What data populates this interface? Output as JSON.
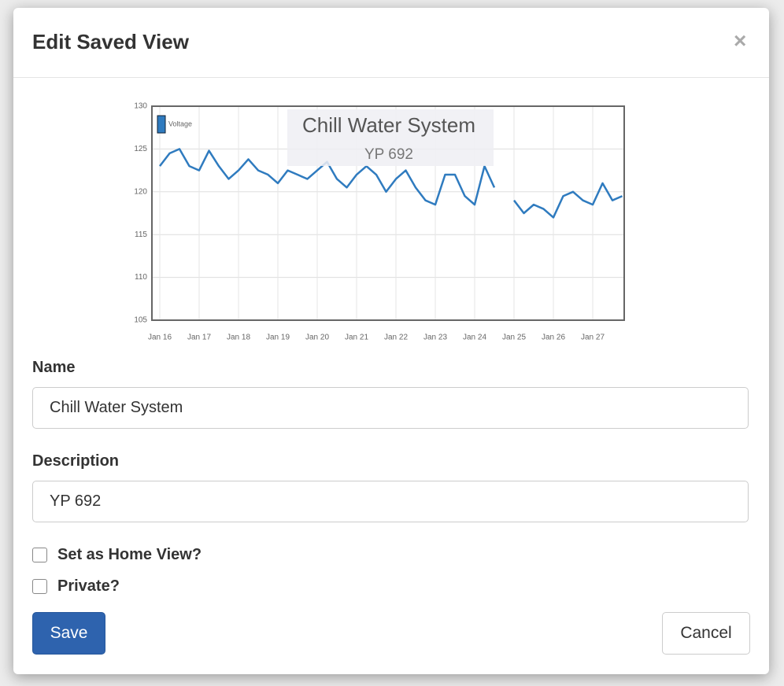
{
  "modal": {
    "title": "Edit Saved View",
    "close": "×",
    "name_label": "Name",
    "name_value": "Chill Water System",
    "description_label": "Description",
    "description_value": "YP 692",
    "checkboxes": [
      "Set as Home View?",
      "Private?"
    ],
    "save": "Save",
    "cancel": "Cancel"
  },
  "chart_data": {
    "type": "line",
    "title": "Chill Water System",
    "subtitle": "YP 692",
    "categories": [
      "Jan 16",
      null,
      null,
      null,
      "Jan 17",
      null,
      null,
      null,
      "Jan 18",
      null,
      null,
      null,
      "Jan 19",
      null,
      null,
      null,
      "Jan 20",
      null,
      null,
      null,
      "Jan 21",
      null,
      null,
      null,
      "Jan 22",
      null,
      null,
      null,
      "Jan 23",
      null,
      null,
      null,
      "Jan 24",
      null,
      null,
      null,
      "Jan 25",
      null,
      null,
      null,
      "Jan 26",
      null,
      null,
      null,
      "Jan 27",
      null,
      null,
      null
    ],
    "series": [
      {
        "name": "Voltage",
        "color": "#2f7bbf",
        "values": [
          123,
          124.5,
          125,
          123,
          122.5,
          124.8,
          123,
          121.5,
          122.5,
          123.8,
          122.5,
          122,
          121,
          122.5,
          122,
          121.5,
          122.5,
          123.5,
          121.5,
          120.5,
          122,
          123,
          122,
          120,
          121.5,
          122.5,
          120.5,
          119,
          118.5,
          122,
          122,
          119.5,
          118.5,
          123,
          120.5,
          null,
          119,
          117.5,
          118.5,
          118,
          117,
          119.5,
          120,
          119,
          118.5,
          121,
          119,
          119.5
        ]
      }
    ],
    "ylim": [
      105,
      130
    ],
    "yticks": [
      105,
      110,
      115,
      120,
      125,
      130
    ],
    "grid": true,
    "legend": "top-left"
  }
}
